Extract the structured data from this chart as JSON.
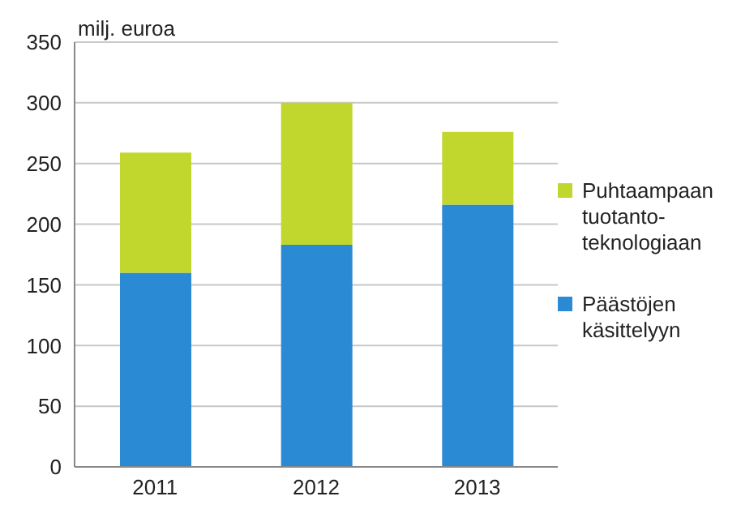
{
  "chart_data": {
    "type": "bar",
    "ylabel": "milj. euroa",
    "categories": [
      "2011",
      "2012",
      "2013"
    ],
    "stacked": true,
    "series": [
      {
        "name": "Päästöjen käsittelyyn",
        "color": "#2a8ad4",
        "values": [
          160,
          183,
          216
        ]
      },
      {
        "name": "Puhtaampaan tuotanto-teknologiaan",
        "color": "#c1d72e",
        "values": [
          99,
          117,
          60
        ]
      }
    ],
    "ylim": [
      0,
      350
    ],
    "yticks": [
      0,
      50,
      100,
      150,
      200,
      250,
      300,
      350
    ],
    "grid": "y",
    "legend": "right"
  }
}
